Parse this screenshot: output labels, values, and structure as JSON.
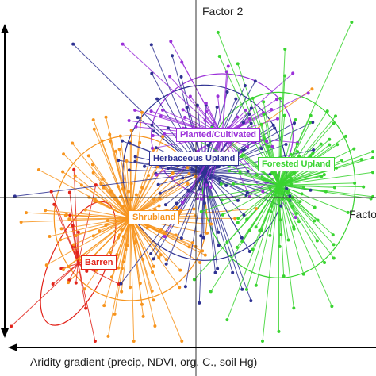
{
  "chart_data": {
    "type": "scatter",
    "title": "",
    "axis_labels": {
      "factor2": "Factor 2",
      "factor1": "Facto",
      "gradient": "Aridity gradient (precip, NDVI, org. C., soil Hg)"
    },
    "xlim": [
      -4,
      4
    ],
    "ylim": [
      -4,
      4
    ],
    "groups": [
      {
        "name": "Barren",
        "color": "#e2231a",
        "centroid": [
          -2.7,
          -1.6
        ],
        "spread": [
          0.5,
          1.3
        ],
        "n": 25
      },
      {
        "name": "Shrubland",
        "color": "#f7941d",
        "centroid": [
          -1.5,
          -0.5
        ],
        "spread": [
          1.4,
          1.6
        ],
        "n": 150
      },
      {
        "name": "Herbaceous Upland",
        "color": "#2e3192",
        "centroid": [
          0.2,
          0.6
        ],
        "spread": [
          1.5,
          1.7
        ],
        "n": 110
      },
      {
        "name": "Planted/Cultivated",
        "color": "#9b30d9",
        "centroid": [
          0.6,
          1.5
        ],
        "spread": [
          1.3,
          1.2
        ],
        "n": 60
      },
      {
        "name": "Forested Upland",
        "color": "#39d430",
        "centroid": [
          1.9,
          0.3
        ],
        "spread": [
          1.4,
          1.8
        ],
        "n": 130
      }
    ],
    "legend_placement": "inline labels at group centroids",
    "grid": false
  }
}
